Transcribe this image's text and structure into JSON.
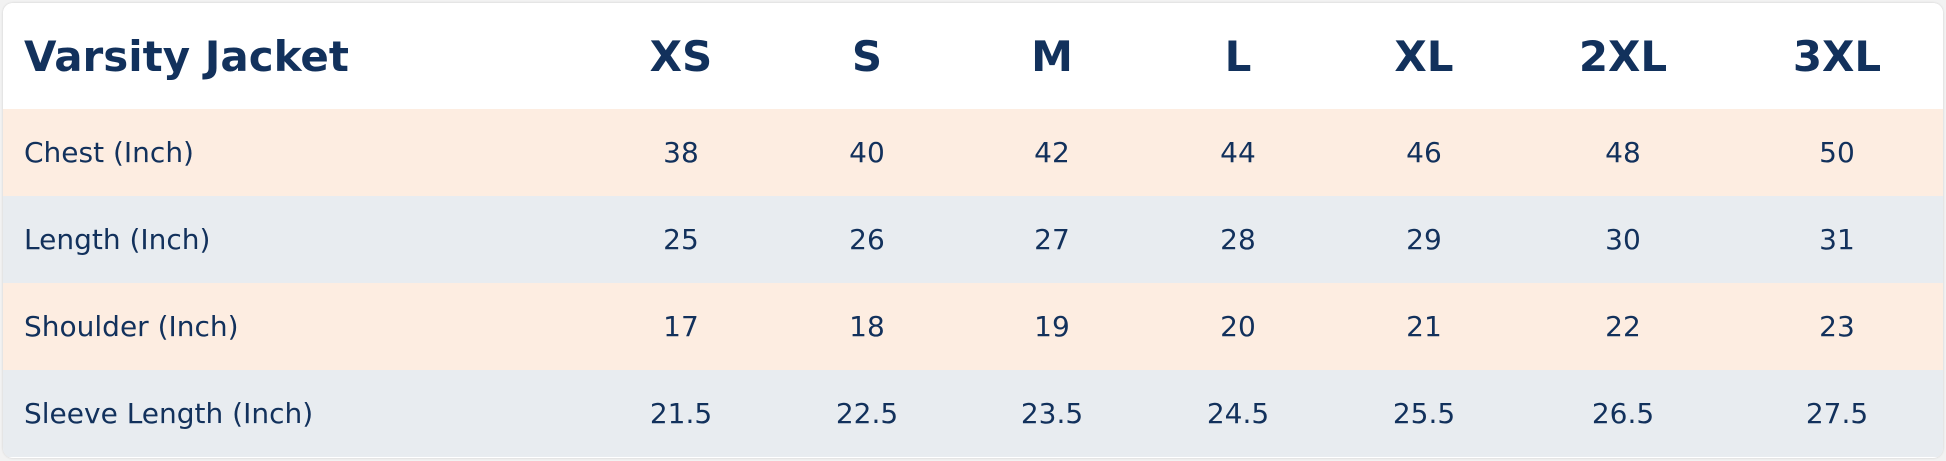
{
  "table": {
    "header": [
      "Varsity Jacket",
      "XS",
      "S",
      "M",
      "L",
      "XL",
      "2XL",
      "3XL"
    ],
    "rows": [
      [
        "Chest (Inch)",
        "38",
        "40",
        "42",
        "44",
        "46",
        "48",
        "50"
      ],
      [
        "Length (Inch)",
        "25",
        "26",
        "27",
        "28",
        "29",
        "30",
        "31"
      ],
      [
        "Shoulder (Inch)",
        "17",
        "18",
        "19",
        "20",
        "21",
        "22",
        "23"
      ],
      [
        "Sleeve Length (Inch)",
        "21.5",
        "22.5",
        "23.5",
        "24.5",
        "25.5",
        "26.5",
        "27.5"
      ]
    ]
  }
}
